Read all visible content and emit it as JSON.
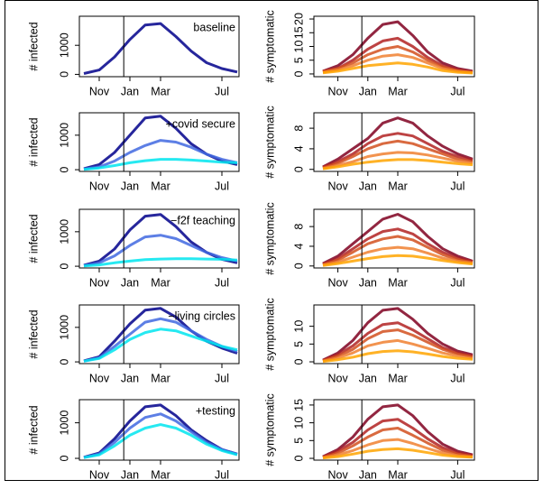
{
  "chart_data": [
    {
      "type": "line",
      "ylabel": "# infected",
      "annotation": "baseline",
      "categories": [
        null,
        "Nov",
        null,
        "Jan",
        null,
        "Mar",
        null,
        null,
        null,
        "Jul",
        null
      ],
      "ylim": [
        -80,
        2000
      ],
      "yticks": [
        0,
        1000
      ],
      "series": [
        {
          "color": "#00008b",
          "values": [
            30,
            150,
            600,
            1200,
            1700,
            1750,
            1300,
            800,
            400,
            200,
            80
          ]
        }
      ]
    },
    {
      "type": "line",
      "ylabel": "# symptomatic",
      "categories": [
        null,
        "Nov",
        null,
        "Jan",
        null,
        "Mar",
        null,
        null,
        null,
        "Jul",
        null
      ],
      "ylim": [
        -1,
        21
      ],
      "yticks": [
        0,
        5,
        10,
        15,
        20
      ],
      "series": [
        {
          "color": "#7f0020",
          "values": [
            1,
            3,
            7,
            13,
            18,
            19,
            14,
            8,
            4,
            2,
            1
          ]
        },
        {
          "color": "#b22222",
          "values": [
            1,
            2,
            5,
            9,
            12,
            13,
            10,
            6,
            3,
            1.5,
            0.7
          ]
        },
        {
          "color": "#d2501e",
          "values": [
            0.8,
            2,
            4,
            7,
            9,
            10,
            8,
            5,
            2.5,
            1.2,
            0.6
          ]
        },
        {
          "color": "#f08030",
          "values": [
            0.6,
            1.5,
            3,
            5,
            6.5,
            7,
            6,
            4,
            2,
            1,
            0.5
          ]
        },
        {
          "color": "#ffa500",
          "values": [
            0.4,
            1,
            2,
            3,
            3.5,
            4,
            3.5,
            2.5,
            1.2,
            0.6,
            0.3
          ]
        }
      ]
    },
    {
      "type": "line",
      "ylabel": "# infected",
      "annotation": "+covid secure",
      "categories": [
        null,
        "Nov",
        null,
        "Jan",
        null,
        "Mar",
        null,
        null,
        null,
        "Jul",
        null
      ],
      "ylim": [
        -50,
        1650
      ],
      "yticks": [
        0,
        1000
      ],
      "series": [
        {
          "color": "#00008b",
          "values": [
            30,
            150,
            500,
            1000,
            1500,
            1550,
            1200,
            750,
            450,
            250,
            150
          ]
        },
        {
          "color": "#4169e1",
          "values": [
            20,
            80,
            250,
            500,
            700,
            850,
            800,
            650,
            450,
            300,
            200
          ]
        },
        {
          "color": "#00e5ee",
          "values": [
            10,
            50,
            120,
            200,
            260,
            300,
            300,
            280,
            250,
            220,
            200
          ]
        }
      ]
    },
    {
      "type": "line",
      "ylabel": "# symptomatic",
      "categories": [
        null,
        "Nov",
        null,
        "Jan",
        null,
        "Mar",
        null,
        null,
        null,
        "Jul",
        null
      ],
      "ylim": [
        -0.4,
        11
      ],
      "yticks": [
        0,
        4,
        8
      ],
      "series": [
        {
          "color": "#7f0020",
          "values": [
            0.5,
            2,
            4,
            6,
            9,
            10,
            9,
            6.5,
            4.5,
            3,
            2
          ]
        },
        {
          "color": "#b22222",
          "values": [
            0.4,
            1.5,
            3,
            5,
            6.5,
            7,
            6.5,
            5,
            3.5,
            2.5,
            1.8
          ]
        },
        {
          "color": "#d2501e",
          "values": [
            0.3,
            1.2,
            2.5,
            4,
            5,
            5.5,
            5,
            4,
            3,
            2,
            1.5
          ]
        },
        {
          "color": "#f08030",
          "values": [
            0.2,
            0.8,
            1.5,
            2.5,
            3,
            3.3,
            3.2,
            2.8,
            2.2,
            1.6,
            1.2
          ]
        },
        {
          "color": "#ffa500",
          "values": [
            0.1,
            0.5,
            1,
            1.4,
            1.7,
            1.9,
            1.9,
            1.7,
            1.4,
            1.1,
            0.9
          ]
        }
      ]
    },
    {
      "type": "line",
      "ylabel": "# infected",
      "annotation": "−f2f teaching",
      "categories": [
        null,
        "Nov",
        null,
        "Jan",
        null,
        "Mar",
        null,
        null,
        null,
        "Jul",
        null
      ],
      "ylim": [
        -50,
        1650
      ],
      "yticks": [
        0,
        1000
      ],
      "series": [
        {
          "color": "#00008b",
          "values": [
            30,
            150,
            500,
            1050,
            1450,
            1500,
            1150,
            700,
            400,
            200,
            100
          ]
        },
        {
          "color": "#4169e1",
          "values": [
            20,
            100,
            300,
            600,
            850,
            900,
            800,
            600,
            400,
            250,
            150
          ]
        },
        {
          "color": "#00e5ee",
          "values": [
            10,
            40,
            100,
            150,
            190,
            210,
            220,
            220,
            210,
            200,
            180
          ]
        }
      ]
    },
    {
      "type": "line",
      "ylabel": "# symptomatic",
      "categories": [
        null,
        "Nov",
        null,
        "Jan",
        null,
        "Mar",
        null,
        null,
        null,
        "Jul",
        null
      ],
      "ylim": [
        -0.4,
        11.5
      ],
      "yticks": [
        0,
        4,
        8
      ],
      "series": [
        {
          "color": "#7f0020",
          "values": [
            0.5,
            2,
            4.5,
            7,
            9.5,
            10.5,
            9,
            6,
            3.5,
            2,
            1
          ]
        },
        {
          "color": "#b22222",
          "values": [
            0.4,
            1.5,
            3.5,
            5.5,
            7,
            7.5,
            6.5,
            4.5,
            2.8,
            1.6,
            0.9
          ]
        },
        {
          "color": "#d2501e",
          "values": [
            0.3,
            1.2,
            2.8,
            4.5,
            5.5,
            6,
            5.3,
            3.8,
            2.3,
            1.3,
            0.7
          ]
        },
        {
          "color": "#f08030",
          "values": [
            0.2,
            0.8,
            1.8,
            2.8,
            3.5,
            3.8,
            3.5,
            2.6,
            1.6,
            1,
            0.6
          ]
        },
        {
          "color": "#ffa500",
          "values": [
            0.1,
            0.5,
            1,
            1.5,
            1.9,
            2.1,
            2,
            1.6,
            1.1,
            0.7,
            0.4
          ]
        }
      ]
    },
    {
      "type": "line",
      "ylabel": "# infected",
      "annotation": "−living circles",
      "categories": [
        null,
        "Nov",
        null,
        "Jan",
        null,
        "Mar",
        null,
        null,
        null,
        "Jul",
        null
      ],
      "ylim": [
        -50,
        1650
      ],
      "yticks": [
        0,
        1000
      ],
      "series": [
        {
          "color": "#00008b",
          "values": [
            30,
            150,
            600,
            1100,
            1500,
            1550,
            1300,
            900,
            600,
            400,
            250
          ]
        },
        {
          "color": "#4169e1",
          "values": [
            20,
            120,
            450,
            800,
            1150,
            1250,
            1150,
            900,
            650,
            450,
            300
          ]
        },
        {
          "color": "#00e5ee",
          "values": [
            20,
            100,
            350,
            650,
            850,
            950,
            900,
            750,
            600,
            450,
            350
          ]
        }
      ]
    },
    {
      "type": "line",
      "ylabel": "# symptomatic",
      "categories": [
        null,
        "Nov",
        null,
        "Jan",
        null,
        "Mar",
        null,
        null,
        null,
        "Jul",
        null
      ],
      "ylim": [
        -0.5,
        16
      ],
      "yticks": [
        0,
        5,
        10
      ],
      "series": [
        {
          "color": "#7f0020",
          "values": [
            0.5,
            2.5,
            6,
            11,
            14.5,
            15,
            12,
            8,
            5,
            3,
            2
          ]
        },
        {
          "color": "#b22222",
          "values": [
            0.4,
            2,
            4.5,
            8,
            10.5,
            11,
            9,
            6.5,
            4,
            2.5,
            1.6
          ]
        },
        {
          "color": "#d2501e",
          "values": [
            0.3,
            1.6,
            3.5,
            6.5,
            8.5,
            9,
            7.5,
            5.5,
            3.5,
            2.2,
            1.4
          ]
        },
        {
          "color": "#f08030",
          "values": [
            0.2,
            1.1,
            2.5,
            4.5,
            5.5,
            6,
            5,
            3.8,
            2.5,
            1.6,
            1
          ]
        },
        {
          "color": "#ffa500",
          "values": [
            0.1,
            0.6,
            1.3,
            2.3,
            2.9,
            3.1,
            2.8,
            2.2,
            1.5,
            1,
            0.7
          ]
        }
      ]
    },
    {
      "type": "line",
      "ylabel": "# infected",
      "annotation": "+testing",
      "categories": [
        null,
        "Nov",
        null,
        "Jan",
        null,
        "Mar",
        null,
        null,
        null,
        "Jul",
        null
      ],
      "ylim": [
        -50,
        1650
      ],
      "yticks": [
        0,
        1000
      ],
      "series": [
        {
          "color": "#00008b",
          "values": [
            30,
            150,
            550,
            1050,
            1450,
            1500,
            1200,
            800,
            500,
            250,
            120
          ]
        },
        {
          "color": "#4169e1",
          "values": [
            20,
            130,
            450,
            850,
            1150,
            1250,
            1050,
            750,
            450,
            250,
            120
          ]
        },
        {
          "color": "#00e5ee",
          "values": [
            20,
            100,
            350,
            650,
            850,
            950,
            850,
            650,
            400,
            220,
            100
          ]
        }
      ]
    },
    {
      "type": "line",
      "ylabel": "# symptomatic",
      "categories": [
        null,
        "Nov",
        null,
        "Jan",
        null,
        "Mar",
        null,
        null,
        null,
        "Jul",
        null
      ],
      "ylim": [
        -0.5,
        16.5
      ],
      "yticks": [
        0,
        5,
        10,
        15
      ],
      "series": [
        {
          "color": "#7f0020",
          "values": [
            0.5,
            2.5,
            6,
            11,
            14.5,
            15,
            12,
            7.5,
            4,
            2,
            1
          ]
        },
        {
          "color": "#b22222",
          "values": [
            0.4,
            2,
            4.5,
            8,
            10.5,
            11,
            8.5,
            5.5,
            3,
            1.5,
            0.8
          ]
        },
        {
          "color": "#d2501e",
          "values": [
            0.3,
            1.5,
            3.5,
            6,
            8,
            8.5,
            6.5,
            4.3,
            2.3,
            1.2,
            0.6
          ]
        },
        {
          "color": "#f08030",
          "values": [
            0.2,
            1,
            2.2,
            3.8,
            5,
            5.3,
            4.2,
            2.8,
            1.5,
            0.8,
            0.4
          ]
        },
        {
          "color": "#ffa500",
          "values": [
            0.1,
            0.5,
            1.2,
            2,
            2.5,
            2.7,
            2.3,
            1.6,
            0.9,
            0.5,
            0.3
          ]
        }
      ]
    }
  ]
}
